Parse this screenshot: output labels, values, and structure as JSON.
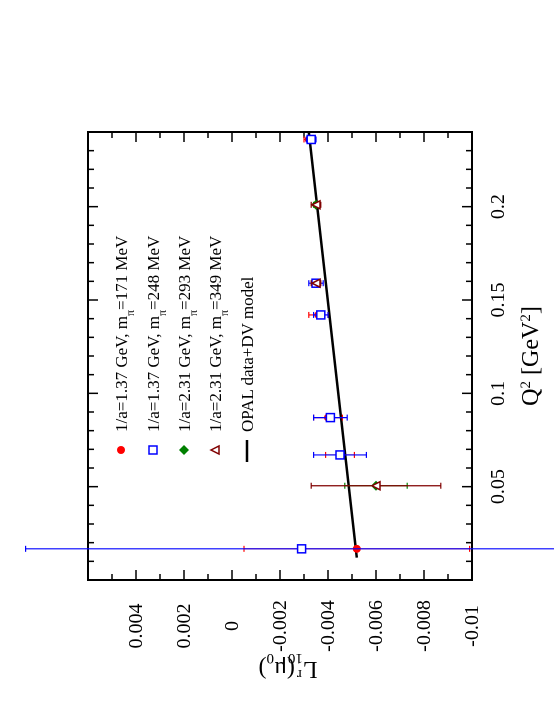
{
  "chart_data": {
    "type": "scatter",
    "orientation": "rotated-90-clockwise",
    "xlabel": "Q",
    "xlabel_sup": "2",
    "xlabel_unit": "[GeV",
    "xlabel_unit_sup": "2",
    "xlabel_unit_close": "]",
    "ylabel": "L",
    "ylabel_sub": "10",
    "ylabel_sup": "r",
    "ylabel_arg": "(μ",
    "ylabel_arg_sub": "0",
    "ylabel_arg_close": ")",
    "xlim": [
      0,
      0.24
    ],
    "ylim": [
      -0.01,
      0.006
    ],
    "x_ticks": [
      0.05,
      0.1,
      0.15,
      0.2
    ],
    "x_tick_labels": [
      "0.05",
      "0.1",
      "0.15",
      "0.2"
    ],
    "y_ticks": [
      -0.01,
      -0.008,
      -0.006,
      -0.004,
      -0.002,
      0,
      0.002,
      0.004
    ],
    "y_tick_labels": [
      "-0.01",
      "-0.008",
      "-0.006",
      "-0.004",
      "-0.002",
      "0",
      "0.002",
      "0.004"
    ],
    "colors": {
      "red": "#ff0000",
      "blue": "#0000ff",
      "green": "#008000",
      "maroon": "#800000",
      "black": "#000000"
    },
    "series": [
      {
        "name": "1/a=1.37 GeV, m",
        "name_sub": "π",
        "name_rest": "=171 MeV",
        "marker": "circle",
        "color": "#ff0000",
        "points": [
          {
            "x": 0.0167,
            "y": -0.0052,
            "err": 0.0047
          },
          {
            "x": 0.067,
            "y": -0.0045,
            "err": 0.0006
          },
          {
            "x": 0.087,
            "y": -0.004,
            "err": 0.0006
          },
          {
            "x": 0.142,
            "y": -0.0036,
            "err": 0.0004
          },
          {
            "x": 0.236,
            "y": -0.0032,
            "err": 0.0002
          }
        ]
      },
      {
        "name": "1/a=1.37 GeV, m",
        "name_sub": "π",
        "name_rest": "=248 MeV",
        "marker": "square",
        "color": "#0000ff",
        "points": [
          {
            "x": 0.0167,
            "y": -0.0029,
            "err": 0.0115
          },
          {
            "x": 0.067,
            "y": -0.0045,
            "err": 0.0011
          },
          {
            "x": 0.087,
            "y": -0.0041,
            "err": 0.0007
          },
          {
            "x": 0.142,
            "y": -0.0037,
            "err": 0.0003
          },
          {
            "x": 0.159,
            "y": -0.0035,
            "err": 0.0003
          },
          {
            "x": 0.236,
            "y": -0.0033,
            "err": 0.0002
          }
        ]
      },
      {
        "name": "1/a=2.31 GeV, m",
        "name_sub": "π",
        "name_rest": "=293 MeV",
        "marker": "diamond",
        "color": "#008000",
        "points": [
          {
            "x": 0.0505,
            "y": -0.006,
            "err": 0.0013
          },
          {
            "x": 0.201,
            "y": -0.0035,
            "err": 0.0001
          }
        ]
      },
      {
        "name": "1/a=2.31 GeV, m",
        "name_sub": "π",
        "name_rest": "=349 MeV",
        "marker": "triangle",
        "color": "#800000",
        "points": [
          {
            "x": 0.0505,
            "y": -0.006,
            "err": 0.0027
          },
          {
            "x": 0.159,
            "y": -0.0035,
            "err": 0.0002
          },
          {
            "x": 0.201,
            "y": -0.0035,
            "err": 0.0002
          }
        ]
      }
    ],
    "model_line": {
      "name": "OPAL data+DV model",
      "color": "#000000",
      "x": [
        0.012,
        0.24
      ],
      "y": [
        -0.0052,
        -0.0032
      ]
    },
    "legend": {
      "placement": "top-right"
    }
  }
}
